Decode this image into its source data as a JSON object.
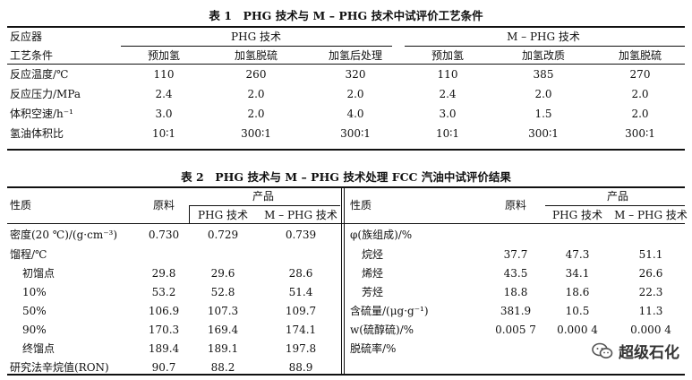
{
  "table1": {
    "caption": "表 1　PHG 技术与 M – PHG 技术中试评价工艺条件",
    "reactor_label": "反应器",
    "process_label": "工艺条件",
    "group_phg": "PHG 技术",
    "group_mphg": "M – PHG 技术",
    "columns": [
      "预加氢",
      "加氢脱硫",
      "加氢后处理",
      "预加氢",
      "加氢改质",
      "加氢脱硫"
    ],
    "rows": [
      {
        "label": "反应温度/℃",
        "values": [
          "110",
          "260",
          "320",
          "110",
          "385",
          "270"
        ]
      },
      {
        "label": "反应压力/MPa",
        "values": [
          "2.4",
          "2.0",
          "2.0",
          "2.4",
          "2.0",
          "2.0"
        ]
      },
      {
        "label": "体积空速/h⁻¹",
        "values": [
          "3.0",
          "2.0",
          "4.0",
          "3.0",
          "1.5",
          "2.0"
        ]
      },
      {
        "label": "氢油体积比",
        "values": [
          "10∶1",
          "300∶1",
          "300∶1",
          "10∶1",
          "300∶1",
          "300∶1"
        ]
      }
    ]
  },
  "table2": {
    "caption": "表 2　PHG 技术与 M – PHG 技术处理 FCC 汽油中试评价结果",
    "h_property": "性质",
    "h_raw": "原料",
    "h_product": "产品",
    "h_phg": "PHG 技术",
    "h_mphg": "M – PHG 技术",
    "left_rows": [
      {
        "label": "密度(20 ℃)/(g·cm⁻³)",
        "values": [
          "0.730",
          "0.729",
          "0.739"
        ]
      },
      {
        "label": "馏程/℃",
        "values": [
          "",
          "",
          ""
        ]
      },
      {
        "label": "初馏点",
        "values": [
          "29.8",
          "29.6",
          "28.6"
        ]
      },
      {
        "label": "10%",
        "values": [
          "53.2",
          "52.8",
          "51.4"
        ]
      },
      {
        "label": "50%",
        "values": [
          "106.9",
          "107.3",
          "109.7"
        ]
      },
      {
        "label": "90%",
        "values": [
          "170.3",
          "169.4",
          "174.1"
        ]
      },
      {
        "label": "终馏点",
        "values": [
          "189.4",
          "189.1",
          "197.8"
        ]
      },
      {
        "label": "研究法辛烷值(RON)",
        "values": [
          "90.7",
          "88.2",
          "88.9"
        ]
      }
    ],
    "right_rows": [
      {
        "label": "φ(族组成)/%",
        "values": [
          "",
          "",
          ""
        ]
      },
      {
        "label": "烷烃",
        "values": [
          "37.7",
          "47.3",
          "51.1"
        ]
      },
      {
        "label": "烯烃",
        "values": [
          "43.5",
          "34.1",
          "26.6"
        ]
      },
      {
        "label": "芳烃",
        "values": [
          "18.8",
          "18.6",
          "22.3"
        ]
      },
      {
        "label": "含硫量/(μg·g⁻¹)",
        "values": [
          "381.9",
          "10.5",
          "11.3"
        ]
      },
      {
        "label": "w(硫醇硫)/%",
        "values": [
          "0.005 7",
          "0.000 4",
          "0.000 4"
        ]
      },
      {
        "label": "脱硫率/%",
        "values": [
          "",
          "",
          ""
        ]
      }
    ]
  },
  "watermark": {
    "text": "超级石化",
    "icon": "wechat-icon"
  }
}
